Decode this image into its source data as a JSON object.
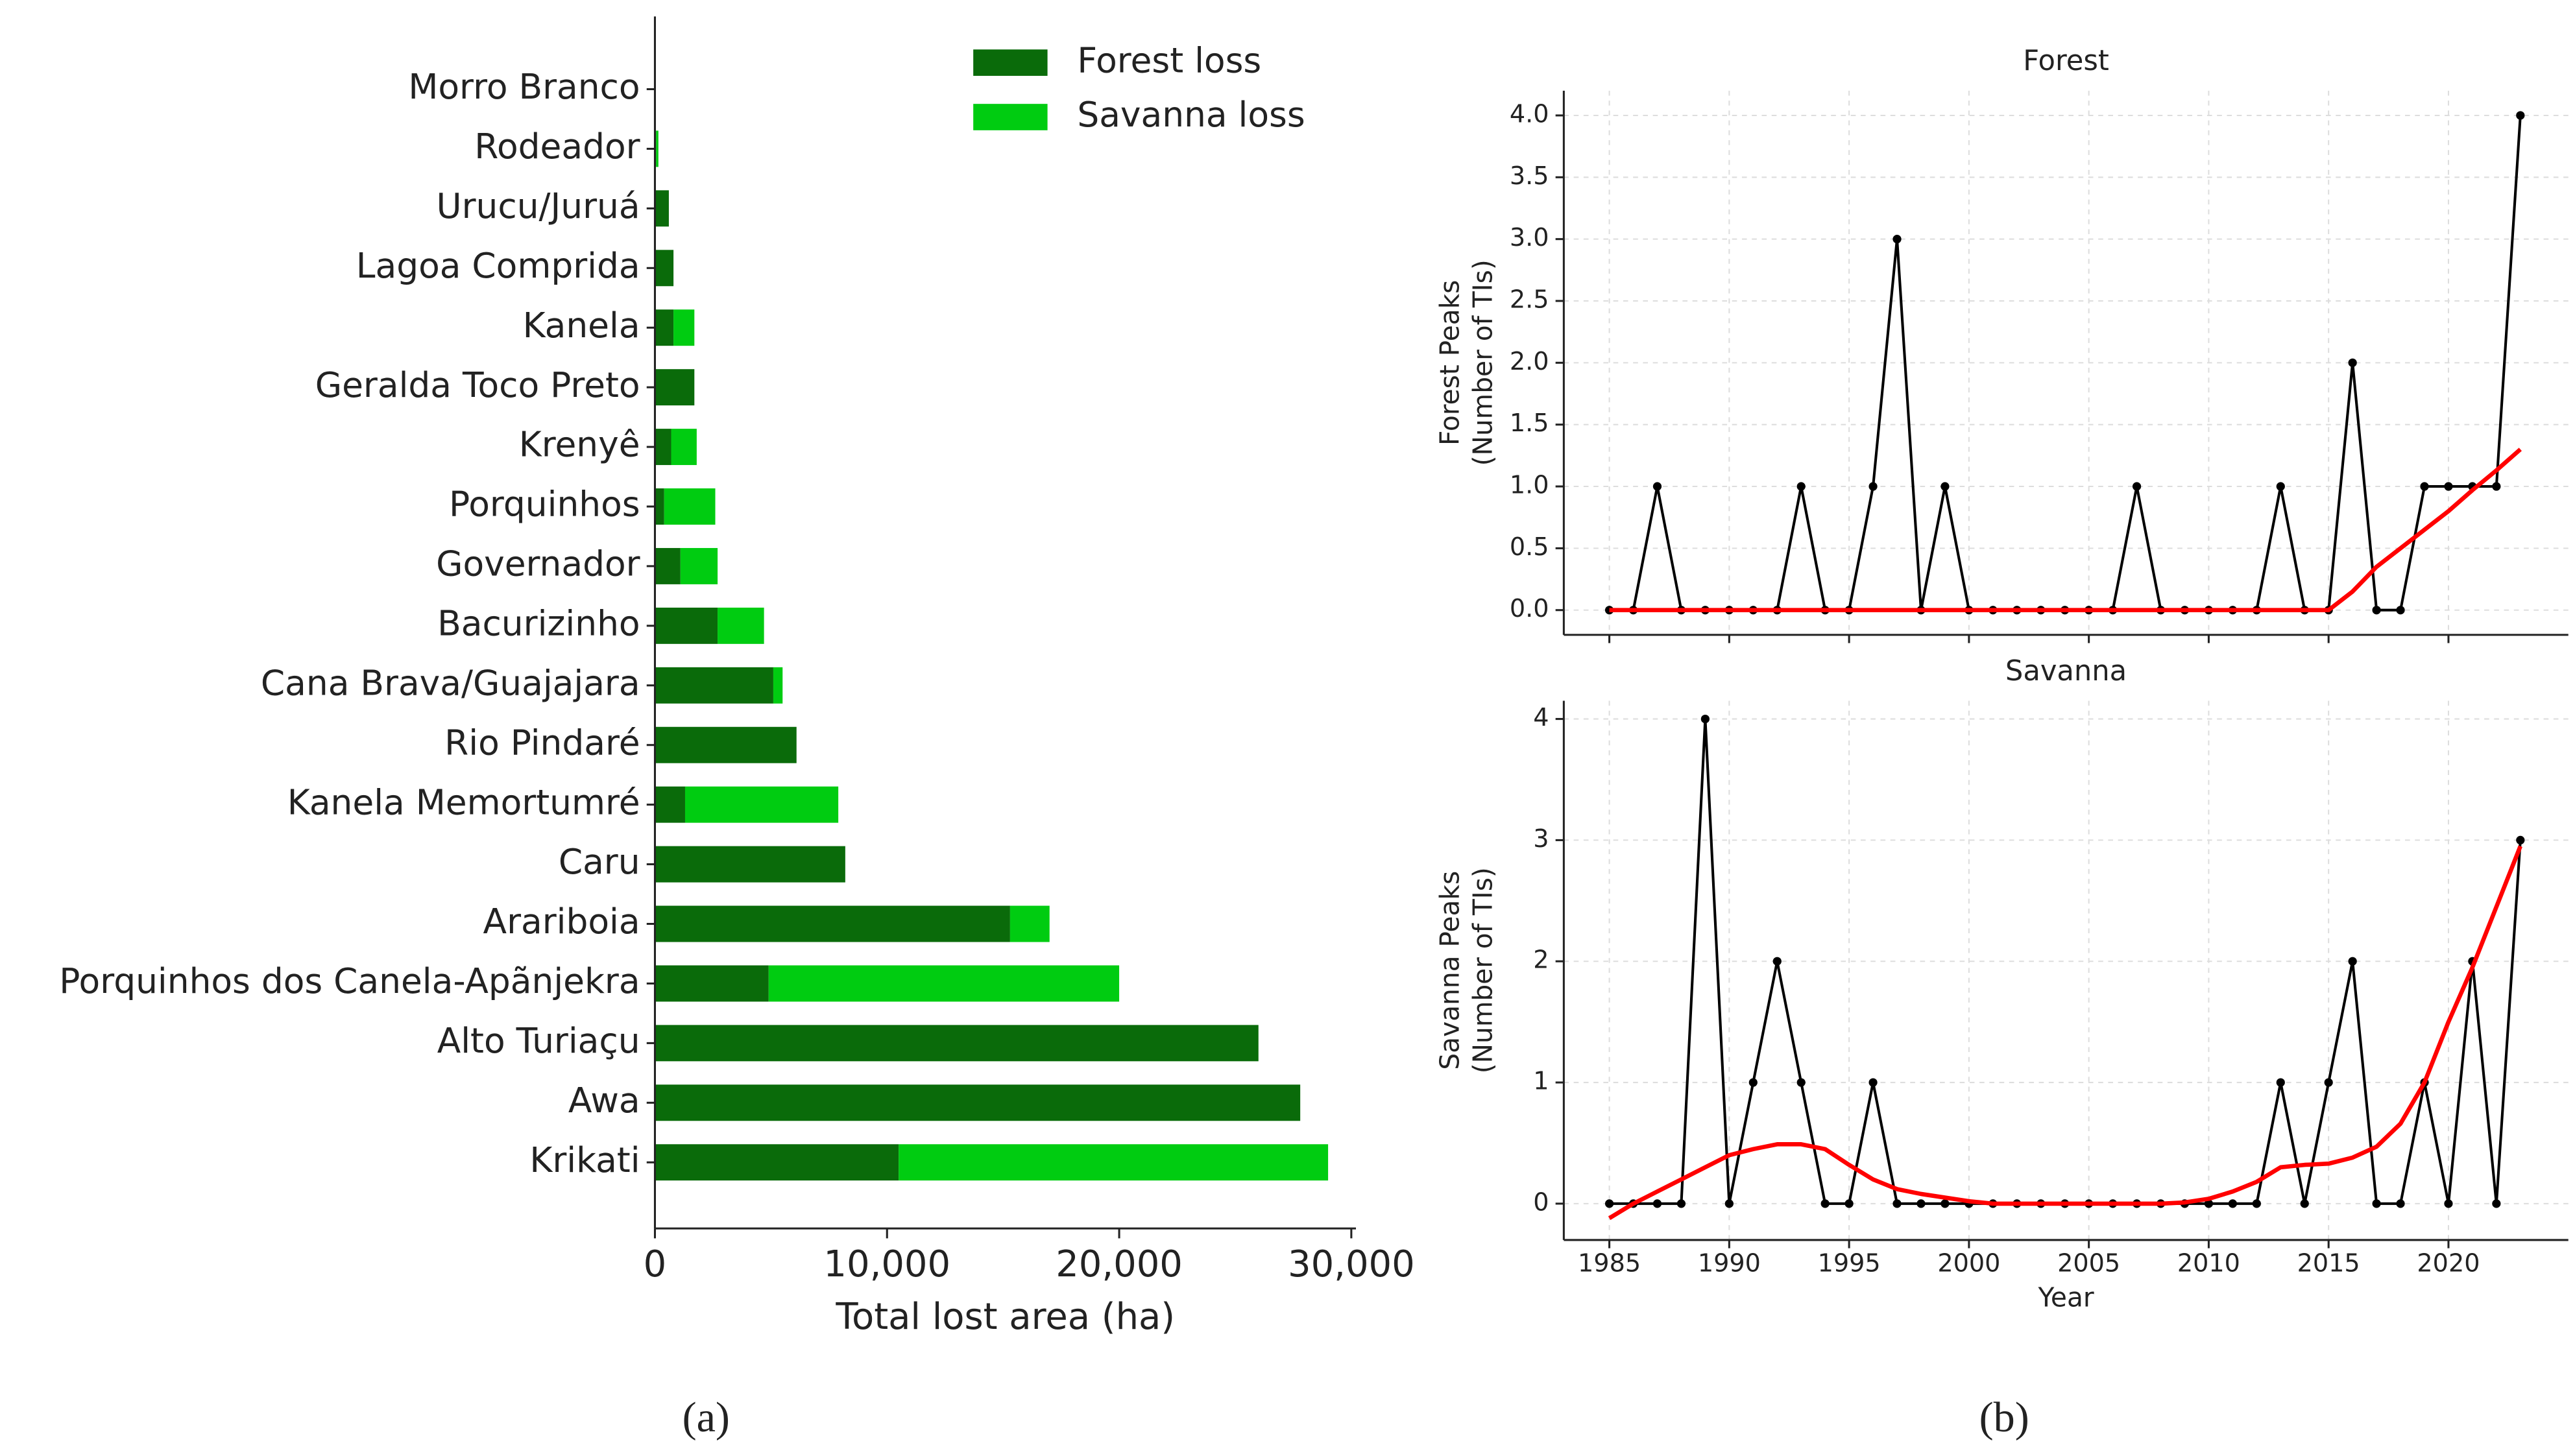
{
  "captions": [
    "(a)",
    "(b)"
  ],
  "chart_data": [
    {
      "type": "bar",
      "orientation": "horizontal",
      "stacked": true,
      "xlabel": "Total lost area (ha)",
      "categories": [
        "Morro Branco",
        "Rodeador",
        "Urucu/Juruá",
        "Lagoa Comprida",
        "Kanela",
        "Geralda Toco Preto",
        "Krenyê",
        "Porquinhos",
        "Governador",
        "Bacurizinho",
        "Cana Brava/Guajajara",
        "Rio Pindaré",
        "Kanela Memortumré",
        "Caru",
        "Arariboia",
        "Porquinhos dos Canela-Apãnjekra",
        "Alto Turiaçu",
        "Awa",
        "Krikati"
      ],
      "series": [
        {
          "name": "Forest loss",
          "color": "#0a6b0a",
          "values": [
            20,
            50,
            600,
            800,
            800,
            1700,
            700,
            400,
            1100,
            2700,
            5100,
            6100,
            1300,
            8200,
            15300,
            4900,
            26000,
            27800,
            10500
          ]
        },
        {
          "name": "Savanna loss",
          "color": "#00cc11",
          "values": [
            0,
            100,
            0,
            0,
            900,
            0,
            1100,
            2200,
            1600,
            2000,
            400,
            0,
            6600,
            0,
            1700,
            15100,
            0,
            0,
            18500
          ]
        }
      ],
      "xlim": [
        0,
        30200
      ],
      "xticks": [
        0,
        {
          "value": 10000,
          "label": "10,000"
        },
        {
          "value": 20000,
          "label": "20,000"
        },
        {
          "value": 30000,
          "label": "30,000"
        }
      ],
      "legend": "upper right"
    },
    {
      "type": "line",
      "title": "Forest",
      "ylabel": [
        "Forest Peaks",
        "(Number of TIs)"
      ],
      "x": [
        1985,
        1986,
        1987,
        1988,
        1989,
        1990,
        1991,
        1992,
        1993,
        1994,
        1995,
        1996,
        1997,
        1998,
        1999,
        2000,
        2001,
        2002,
        2003,
        2004,
        2005,
        2006,
        2007,
        2008,
        2009,
        2010,
        2011,
        2012,
        2013,
        2014,
        2015,
        2016,
        2017,
        2018,
        2019,
        2020,
        2021,
        2022,
        2023
      ],
      "series": [
        {
          "color": "#000000",
          "marker": true,
          "values": [
            0,
            0,
            1,
            0,
            0,
            0,
            0,
            0,
            1,
            0,
            0,
            1,
            3,
            0,
            1,
            0,
            0,
            0,
            0,
            0,
            0,
            0,
            1,
            0,
            0,
            0,
            0,
            0,
            1,
            0,
            0,
            2,
            0,
            0,
            1,
            1,
            1,
            1,
            4
          ]
        },
        {
          "color": "#ff0000",
          "values": [
            0,
            0,
            0,
            0,
            0,
            0,
            0,
            0,
            0,
            0,
            0,
            0,
            0,
            0,
            0,
            0,
            0,
            0,
            0,
            0,
            0,
            0,
            0,
            0,
            0,
            0,
            0,
            0,
            0,
            0,
            0,
            0.15,
            0.35,
            0.5,
            0.65,
            0.8,
            0.97,
            1.13,
            1.3
          ]
        }
      ],
      "xlim": [
        1983.1,
        2025
      ],
      "xticks": [
        1985,
        1990,
        1995,
        2000,
        2005,
        2010,
        2015,
        2020
      ],
      "xticklabels": false,
      "ylim": [
        -0.2,
        4.2
      ],
      "yticks": [
        {
          "value": 0,
          "label": "0.0"
        },
        0.5,
        {
          "value": 1,
          "label": "1.0"
        },
        1.5,
        {
          "value": 2,
          "label": "2.0"
        },
        2.5,
        {
          "value": 3,
          "label": "3.0"
        },
        3.5,
        {
          "value": 4,
          "label": "4.0"
        }
      ],
      "grid": true
    },
    {
      "type": "line",
      "title": "Savanna",
      "ylabel": [
        "Savanna Peaks",
        "(Number of TIs)"
      ],
      "xlabel": "Year",
      "x": [
        1985,
        1986,
        1987,
        1988,
        1989,
        1990,
        1991,
        1992,
        1993,
        1994,
        1995,
        1996,
        1997,
        1998,
        1999,
        2000,
        2001,
        2002,
        2003,
        2004,
        2005,
        2006,
        2007,
        2008,
        2009,
        2010,
        2011,
        2012,
        2013,
        2014,
        2015,
        2016,
        2017,
        2018,
        2019,
        2020,
        2021,
        2022,
        2023
      ],
      "series": [
        {
          "color": "#000000",
          "marker": true,
          "values": [
            0,
            0,
            0,
            0,
            4,
            0,
            1,
            2,
            1,
            0,
            0,
            1,
            0,
            0,
            0,
            0,
            0,
            0,
            0,
            0,
            0,
            0,
            0,
            0,
            0,
            0,
            0,
            0,
            1,
            0,
            1,
            2,
            0,
            0,
            1,
            0,
            2,
            0,
            3
          ]
        },
        {
          "color": "#ff0000",
          "values": [
            -0.12,
            0,
            0.1,
            0.2,
            0.3,
            0.4,
            0.45,
            0.49,
            0.49,
            0.45,
            0.32,
            0.2,
            0.12,
            0.08,
            0.05,
            0.02,
            0,
            0,
            0,
            0,
            0,
            0,
            0,
            0,
            0.01,
            0.04,
            0.1,
            0.18,
            0.3,
            0.32,
            0.33,
            0.38,
            0.47,
            0.66,
            1.0,
            1.5,
            1.95,
            2.45,
            2.95
          ]
        }
      ],
      "xlim": [
        1983.1,
        2025
      ],
      "xticks": [
        1985,
        1990,
        1995,
        2000,
        2005,
        2010,
        2015,
        2020
      ],
      "ylim": [
        -0.3,
        4.15
      ],
      "yticks": [
        0,
        1,
        2,
        3,
        4
      ],
      "grid": true
    }
  ]
}
